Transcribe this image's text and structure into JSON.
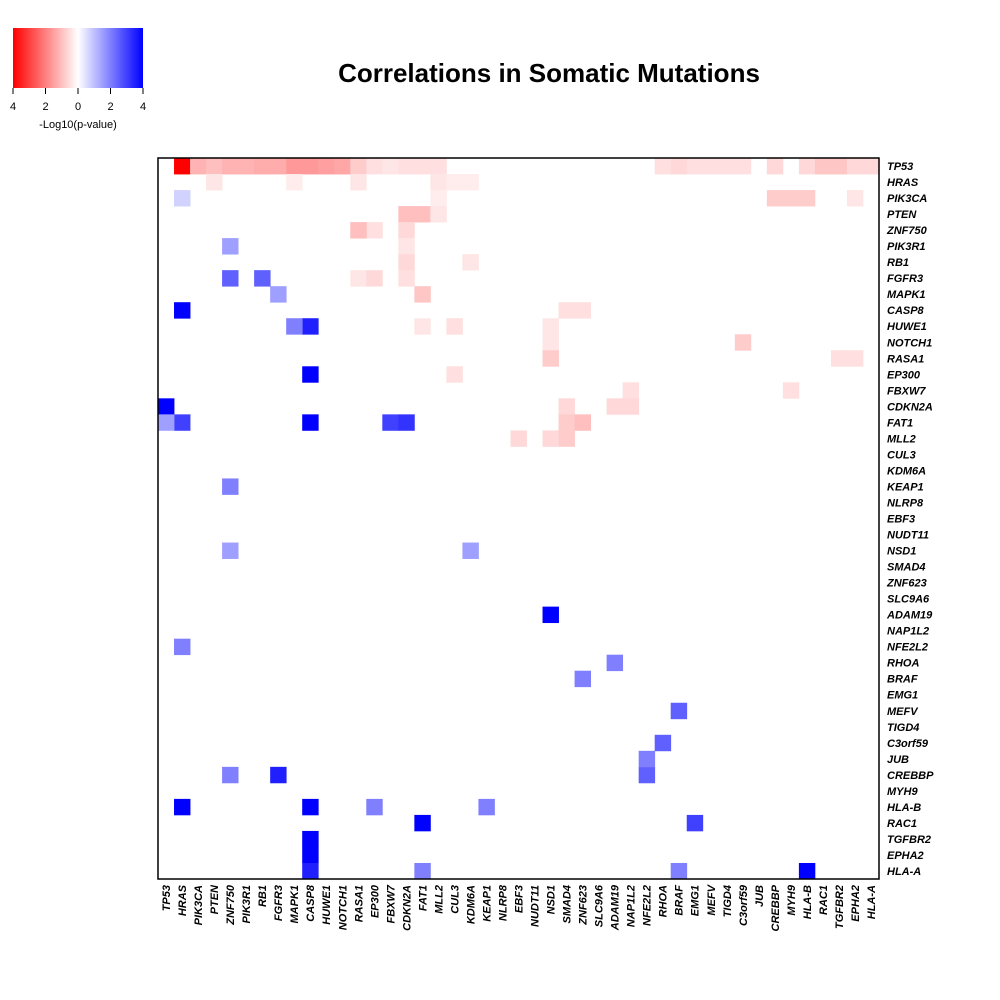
{
  "chart_data": {
    "type": "heatmap",
    "title": "Correlations in Somatic Mutations",
    "colorbar": {
      "label": "-Log10(p-value)",
      "ticks": [
        "4",
        "2",
        "0",
        "2",
        "4"
      ],
      "range": [
        -4,
        4
      ],
      "negative_color": "#ff0000",
      "positive_color": "#0000ff",
      "zero_color": "#ffffff"
    },
    "genes": [
      "TP53",
      "HRAS",
      "PIK3CA",
      "PTEN",
      "ZNF750",
      "PIK3R1",
      "RB1",
      "FGFR3",
      "MAPK1",
      "CASP8",
      "HUWE1",
      "NOTCH1",
      "RASA1",
      "EP300",
      "FBXW7",
      "CDKN2A",
      "FAT1",
      "MLL2",
      "CUL3",
      "KDM6A",
      "KEAP1",
      "NLRP8",
      "EBF3",
      "NUDT11",
      "NSD1",
      "SMAD4",
      "ZNF623",
      "SLC9A6",
      "ADAM19",
      "NAP1L2",
      "NFE2L2",
      "RHOA",
      "BRAF",
      "EMG1",
      "MEFV",
      "TIGD4",
      "C3orf59",
      "JUB",
      "CREBBP",
      "MYH9",
      "HLA-B",
      "RAC1",
      "TGFBR2",
      "EPHA2",
      "HLA-A"
    ],
    "upper_triangle": "mutual exclusivity, -log10(p-value), shown red",
    "lower_triangle": "co-occurrence, -log10(p-value), shown blue",
    "upper_cells": [
      [
        "TP53",
        "HRAS",
        4.0
      ],
      [
        "TP53",
        "PIK3CA",
        1.2
      ],
      [
        "TP53",
        "PTEN",
        1.0
      ],
      [
        "TP53",
        "ZNF750",
        1.2
      ],
      [
        "TP53",
        "PIK3R1",
        1.2
      ],
      [
        "TP53",
        "RB1",
        1.3
      ],
      [
        "TP53",
        "FGFR3",
        1.3
      ],
      [
        "TP53",
        "MAPK1",
        1.6
      ],
      [
        "TP53",
        "CASP8",
        1.6
      ],
      [
        "TP53",
        "HUWE1",
        1.5
      ],
      [
        "TP53",
        "NOTCH1",
        1.4
      ],
      [
        "TP53",
        "RASA1",
        0.8
      ],
      [
        "TP53",
        "EP300",
        0.5
      ],
      [
        "TP53",
        "FBXW7",
        0.4
      ],
      [
        "TP53",
        "CDKN2A",
        0.5
      ],
      [
        "TP53",
        "FAT1",
        0.5
      ],
      [
        "TP53",
        "MLL2",
        0.5
      ],
      [
        "TP53",
        "RHOA",
        0.5
      ],
      [
        "TP53",
        "BRAF",
        0.6
      ],
      [
        "TP53",
        "EMG1",
        0.5
      ],
      [
        "TP53",
        "MEFV",
        0.5
      ],
      [
        "TP53",
        "TIGD4",
        0.5
      ],
      [
        "TP53",
        "C3orf59",
        0.5
      ],
      [
        "TP53",
        "CREBBP",
        0.6
      ],
      [
        "TP53",
        "HLA-B",
        0.6
      ],
      [
        "TP53",
        "RAC1",
        0.9
      ],
      [
        "TP53",
        "TGFBR2",
        0.9
      ],
      [
        "TP53",
        "EPHA2",
        0.6
      ],
      [
        "TP53",
        "HLA-A",
        0.6
      ],
      [
        "HRAS",
        "PTEN",
        0.4
      ],
      [
        "HRAS",
        "MAPK1",
        0.3
      ],
      [
        "HRAS",
        "RASA1",
        0.4
      ],
      [
        "HRAS",
        "MLL2",
        0.4
      ],
      [
        "HRAS",
        "CUL3",
        0.3
      ],
      [
        "HRAS",
        "KDM6A",
        0.3
      ],
      [
        "PIK3CA",
        "MLL2",
        0.3
      ],
      [
        "PIK3CA",
        "CREBBP",
        0.8
      ],
      [
        "PIK3CA",
        "MYH9",
        0.8
      ],
      [
        "PIK3CA",
        "HLA-B",
        0.8
      ],
      [
        "PIK3CA",
        "EPHA2",
        0.4
      ],
      [
        "PTEN",
        "CDKN2A",
        1.0
      ],
      [
        "PTEN",
        "FAT1",
        1.0
      ],
      [
        "PTEN",
        "MLL2",
        0.4
      ],
      [
        "ZNF750",
        "EP300",
        0.5
      ],
      [
        "ZNF750",
        "RASA1",
        1.0
      ],
      [
        "ZNF750",
        "CDKN2A",
        0.6
      ],
      [
        "PIK3R1",
        "CDKN2A",
        0.4
      ],
      [
        "RB1",
        "CDKN2A",
        0.6
      ],
      [
        "RB1",
        "KDM6A",
        0.4
      ],
      [
        "FGFR3",
        "RASA1",
        0.4
      ],
      [
        "FGFR3",
        "EP300",
        0.6
      ],
      [
        "FGFR3",
        "CDKN2A",
        0.5
      ],
      [
        "MAPK1",
        "FAT1",
        0.9
      ],
      [
        "CASP8",
        "SMAD4",
        0.5
      ],
      [
        "CASP8",
        "ZNF623",
        0.5
      ],
      [
        "HUWE1",
        "FAT1",
        0.4
      ],
      [
        "HUWE1",
        "CUL3",
        0.5
      ],
      [
        "HUWE1",
        "NSD1",
        0.4
      ],
      [
        "NOTCH1",
        "NSD1",
        0.4
      ],
      [
        "NOTCH1",
        "C3orf59",
        0.8
      ],
      [
        "RASA1",
        "NSD1",
        0.8
      ],
      [
        "RASA1",
        "TGFBR2",
        0.5
      ],
      [
        "RASA1",
        "EPHA2",
        0.5
      ],
      [
        "EP300",
        "CUL3",
        0.5
      ],
      [
        "FBXW7",
        "NAP1L2",
        0.5
      ],
      [
        "FBXW7",
        "MYH9",
        0.5
      ],
      [
        "CDKN2A",
        "SMAD4",
        0.6
      ],
      [
        "CDKN2A",
        "ADAM19",
        0.6
      ],
      [
        "CDKN2A",
        "NAP1L2",
        0.6
      ],
      [
        "FAT1",
        "SMAD4",
        0.8
      ],
      [
        "FAT1",
        "ZNF623",
        1.0
      ],
      [
        "MLL2",
        "EBF3",
        0.6
      ],
      [
        "MLL2",
        "NSD1",
        0.6
      ],
      [
        "MLL2",
        "SMAD4",
        0.8
      ]
    ],
    "lower_cells": [
      [
        "HRAS",
        "PIK3CA",
        0.7
      ],
      [
        "CASP8",
        "HRAS",
        4.0
      ],
      [
        "CDKN2A",
        "TP53",
        4.0
      ],
      [
        "FAT1",
        "HRAS",
        3.0
      ],
      [
        "FAT1",
        "TP53",
        1.5
      ],
      [
        "CASP8",
        "HUWE1",
        3.5
      ],
      [
        "CASP8",
        "EP300",
        4.0
      ],
      [
        "CASP8",
        "FAT1",
        4.0
      ],
      [
        "FBXW7",
        "FAT1",
        3.0
      ],
      [
        "CDKN2A",
        "FAT1",
        3.2
      ],
      [
        "HUWE1",
        "MAPK1",
        2.0
      ],
      [
        "MAPK1",
        "FGFR3",
        1.5
      ],
      [
        "FGFR3",
        "ZNF750",
        2.5
      ],
      [
        "RB1",
        "FGFR3",
        2.5
      ],
      [
        "PIK3R1",
        "ZNF750",
        1.5
      ],
      [
        "NSD1",
        "ADAM19",
        4.0
      ],
      [
        "HLA-B",
        "HRAS",
        4.0
      ],
      [
        "HLA-B",
        "CASP8",
        4.0
      ],
      [
        "RAC1",
        "FAT1",
        4.0
      ],
      [
        "TGFBR2",
        "CASP8",
        4.0
      ],
      [
        "EPHA2",
        "CASP8",
        4.0
      ],
      [
        "HLA-A",
        "CASP8",
        3.5
      ],
      [
        "HLA-A",
        "HLA-B",
        4.0
      ],
      [
        "CREBBP",
        "FGFR3",
        3.5
      ],
      [
        "RAC1",
        "EMG1",
        3.0
      ],
      [
        "MEFV",
        "BRAF",
        2.5
      ],
      [
        "C3orf59",
        "RHOA",
        2.5
      ],
      [
        "CREBBP",
        "NFE2L2",
        2.5
      ],
      [
        "JUB",
        "NFE2L2",
        2.0
      ],
      [
        "ZNF623",
        "BRAF",
        2.0
      ],
      [
        "RHOA",
        "ADAM19",
        2.0
      ],
      [
        "NFE2L2",
        "HRAS",
        2.0
      ],
      [
        "KEAP1",
        "ZNF750",
        2.0
      ],
      [
        "HLA-B",
        "EP300",
        2.0
      ],
      [
        "HLA-B",
        "KEAP1",
        2.0
      ],
      [
        "CREBBP",
        "ZNF750",
        2.0
      ],
      [
        "NSD1",
        "KDM6A",
        1.5
      ],
      [
        "NSD1",
        "ZNF750",
        1.5
      ],
      [
        "HLA-A",
        "FAT1",
        2.0
      ],
      [
        "HLA-A",
        "BRAF",
        2.0
      ]
    ]
  }
}
